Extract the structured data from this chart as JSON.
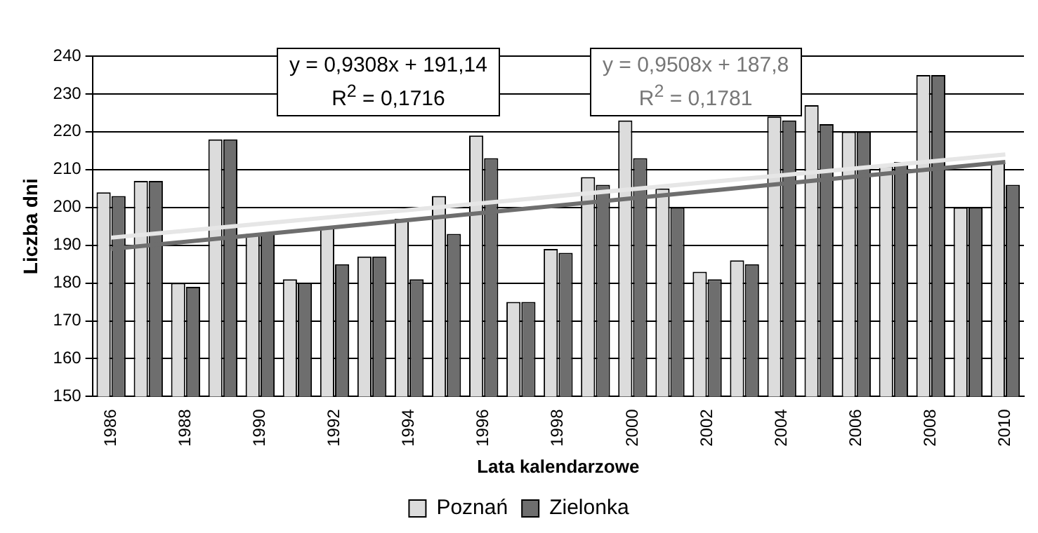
{
  "chart_data": {
    "type": "bar",
    "xlabel": "Lata kalendarzowe",
    "ylabel": "Liczba dni",
    "categories": [
      "1986",
      null,
      "1988",
      null,
      "1990",
      null,
      "1992",
      null,
      "1994",
      null,
      "1996",
      null,
      "1998",
      null,
      "2000",
      null,
      "2002",
      null,
      "2004",
      null,
      "2006",
      null,
      "2008",
      null,
      "2010"
    ],
    "series": [
      {
        "name": "Poznań",
        "color": "#dcdcdc",
        "values": [
          204,
          207,
          180,
          218,
          193,
          181,
          195,
          187,
          197,
          203,
          219,
          175,
          189,
          208,
          223,
          205,
          183,
          186,
          224,
          227,
          220,
          211,
          235,
          200,
          212
        ]
      },
      {
        "name": "Zielonka",
        "color": "#6e6e6e",
        "values": [
          203,
          207,
          179,
          218,
          193,
          180,
          185,
          187,
          181,
          193,
          213,
          175,
          188,
          206,
          213,
          200,
          181,
          185,
          223,
          222,
          220,
          212,
          235,
          200,
          206
        ]
      },
      {
        "type": "line",
        "color": "#e6e6e6",
        "values": [
          192,
          null,
          null,
          null,
          null,
          null,
          null,
          null,
          null,
          null,
          null,
          null,
          null,
          null,
          null,
          null,
          null,
          null,
          null,
          null,
          null,
          null,
          null,
          null,
          214
        ]
      },
      {
        "type": "line",
        "color": "#6e6e6e",
        "values": [
          189,
          null,
          null,
          null,
          null,
          null,
          null,
          null,
          null,
          null,
          null,
          null,
          null,
          null,
          null,
          null,
          null,
          null,
          null,
          null,
          null,
          null,
          null,
          null,
          212
        ]
      }
    ],
    "ylim": [
      150,
      240
    ],
    "yticks": [
      150,
      160,
      170,
      180,
      190,
      200,
      210,
      220,
      230,
      240
    ],
    "grid": "y",
    "legend": "bottom",
    "marker": "none",
    "annotations": [
      "y = 0,9308x + 191,14\nR$^{2}$ = 0,1716",
      "y = 0,9508x + 187,8\nR$^{2}$ = 0,1781"
    ]
  }
}
